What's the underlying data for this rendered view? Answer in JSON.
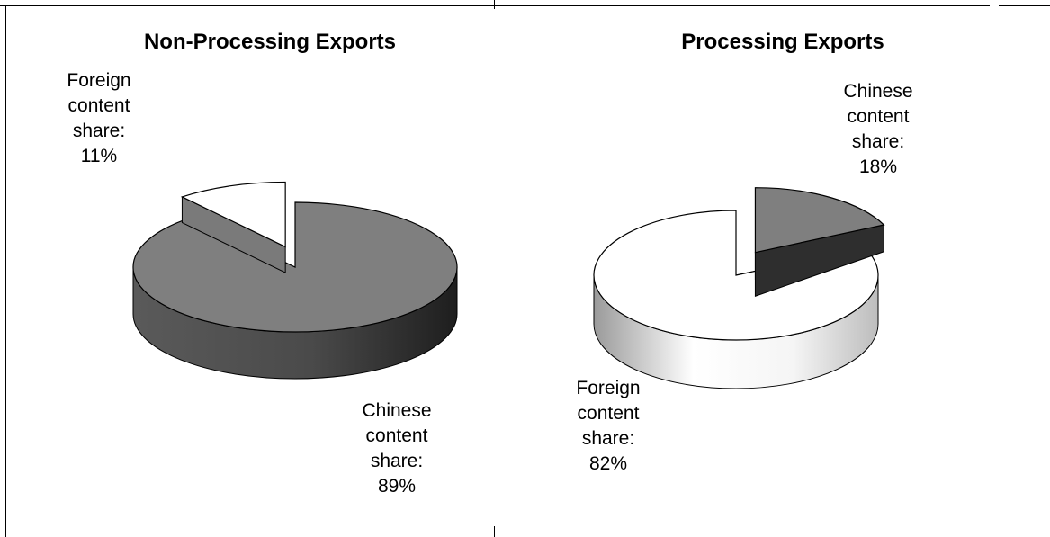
{
  "chart_data": [
    {
      "type": "pie",
      "title": "Non-Processing Exports",
      "slices": [
        {
          "label": "Foreign content share:",
          "value": 11,
          "value_text": "11%",
          "color": "#ffffff",
          "exploded": true
        },
        {
          "label": "Chinese content share:",
          "value": 89,
          "value_text": "89%",
          "color": "#7f7f7f",
          "exploded": false
        }
      ],
      "style": "3d",
      "legend": "none"
    },
    {
      "type": "pie",
      "title": "Processing Exports",
      "slices": [
        {
          "label": "Chinese content share:",
          "value": 18,
          "value_text": "18%",
          "color": "#7f7f7f",
          "exploded": true
        },
        {
          "label": "Foreign content share:",
          "value": 82,
          "value_text": "82%",
          "color": "#ffffff",
          "exploded": false
        }
      ],
      "style": "3d",
      "legend": "none"
    }
  ],
  "labels": {
    "left_small": [
      "Foreign",
      "content",
      "share:",
      "11%"
    ],
    "left_big": [
      "Chinese",
      "content",
      "share:",
      "89%"
    ],
    "right_small": [
      "Chinese",
      "content",
      "share:",
      "18%"
    ],
    "right_big": [
      "Foreign",
      "content",
      "share:",
      "82%"
    ]
  }
}
